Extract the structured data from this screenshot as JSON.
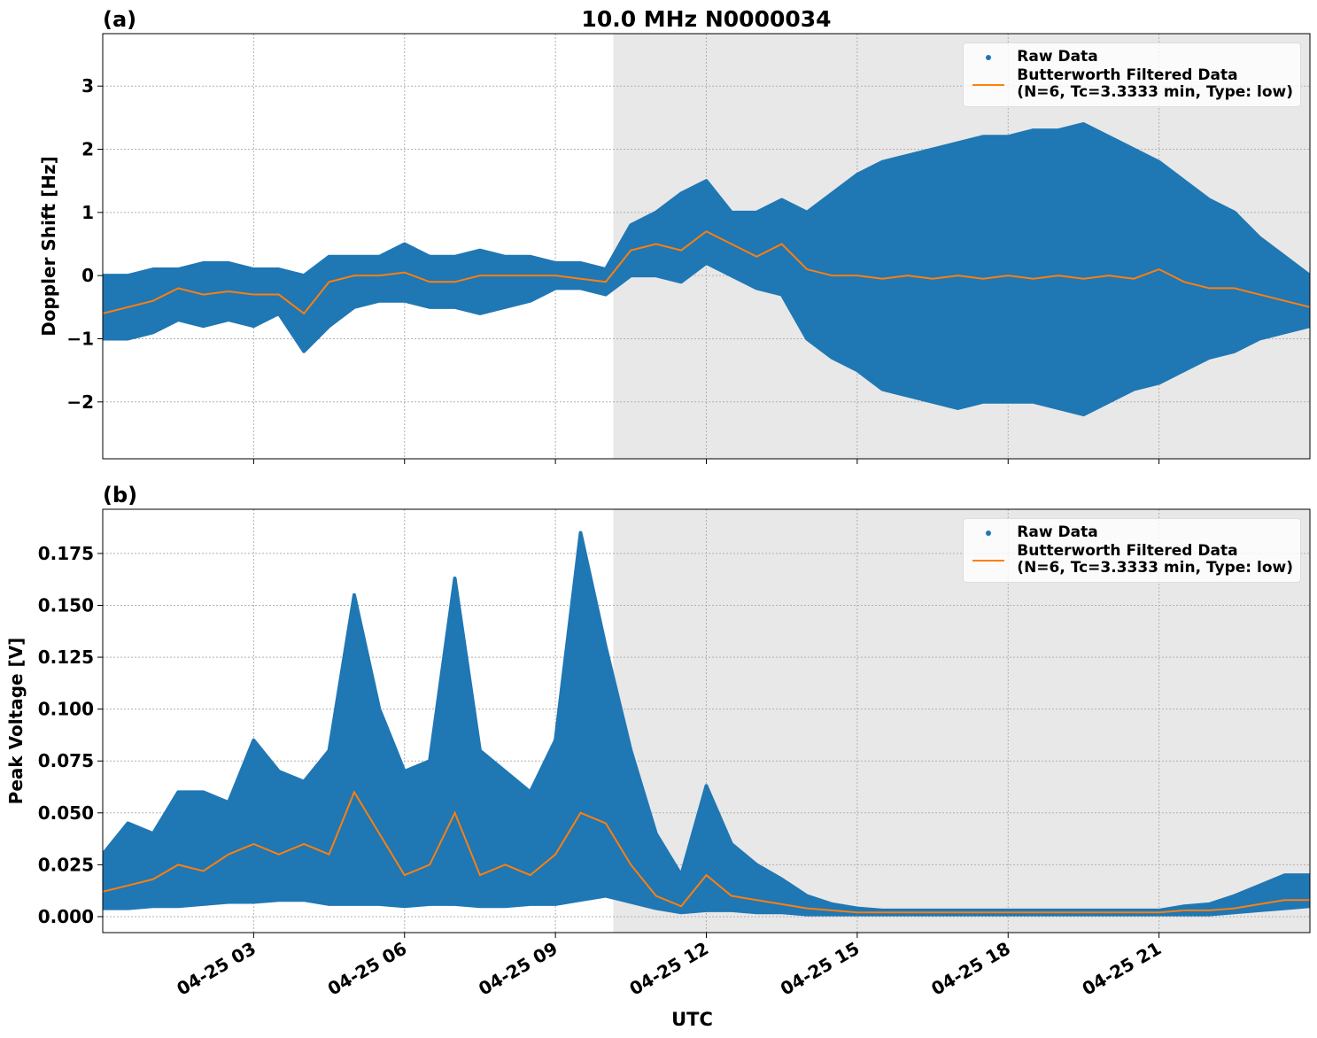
{
  "chart_data": [
    {
      "type": "band_line",
      "title": "10.0 MHz N0000034",
      "panel_label": "(a)",
      "ylabel": "Doppler Shift [Hz]",
      "xlim": [
        0,
        24
      ],
      "xticks": [
        3,
        6,
        9,
        12,
        15,
        18,
        21
      ],
      "ylim": [
        -2.9,
        3.83
      ],
      "yticks": [
        {
          "value": -2,
          "label": "−2"
        },
        {
          "value": -1,
          "label": "−1"
        },
        0,
        1,
        2,
        3
      ],
      "grid": true,
      "legend": "upper right",
      "shaded_region": [
        10.15,
        24
      ],
      "shaded_color": "#e8e8e8",
      "x": [
        0,
        0.5,
        1,
        1.5,
        2,
        2.5,
        3,
        3.5,
        4,
        4.5,
        5,
        5.5,
        6,
        6.5,
        7,
        7.5,
        8,
        8.5,
        9,
        9.5,
        10,
        10.5,
        11,
        11.5,
        12,
        12.5,
        13,
        13.5,
        14,
        14.5,
        15,
        15.5,
        16,
        16.5,
        17,
        17.5,
        18,
        18.5,
        19,
        19.5,
        20,
        20.5,
        21,
        21.5,
        22,
        22.5,
        23,
        23.5,
        24
      ],
      "series": [
        {
          "name": "Raw Data",
          "color": "#1f77b4",
          "marker": "point",
          "low": [
            -1.0,
            -1.0,
            -0.9,
            -0.7,
            -0.8,
            -0.7,
            -0.8,
            -0.6,
            -1.2,
            -0.8,
            -0.5,
            -0.4,
            -0.4,
            -0.5,
            -0.5,
            -0.6,
            -0.5,
            -0.4,
            -0.2,
            -0.2,
            -0.3,
            0.0,
            0.0,
            -0.1,
            0.2,
            0.0,
            -0.2,
            -0.3,
            -1.0,
            -1.3,
            -1.5,
            -1.8,
            -1.9,
            -2.0,
            -2.1,
            -2.0,
            -2.0,
            -2.0,
            -2.1,
            -2.2,
            -2.0,
            -1.8,
            -1.7,
            -1.5,
            -1.3,
            -1.2,
            -1.0,
            -0.9,
            -0.8
          ],
          "high": [
            0.0,
            0.0,
            0.1,
            0.1,
            0.2,
            0.2,
            0.1,
            0.1,
            0.0,
            0.3,
            0.3,
            0.3,
            0.5,
            0.3,
            0.3,
            0.4,
            0.3,
            0.3,
            0.2,
            0.2,
            0.1,
            0.8,
            1.0,
            1.3,
            1.5,
            1.0,
            1.0,
            1.2,
            1.0,
            1.3,
            1.6,
            1.8,
            1.9,
            2.0,
            2.1,
            2.2,
            2.2,
            2.3,
            2.3,
            2.4,
            2.2,
            2.0,
            1.8,
            1.5,
            1.2,
            1.0,
            0.6,
            0.3,
            0.0
          ]
        },
        {
          "name": "Butterworth Filtered Data\n(N=6, Tc=3.3333 min, Type: low)",
          "color": "#ff7f0e",
          "marker": "line",
          "values": [
            -0.6,
            -0.5,
            -0.4,
            -0.2,
            -0.3,
            -0.25,
            -0.3,
            -0.3,
            -0.6,
            -0.1,
            0.0,
            0.0,
            0.05,
            -0.1,
            -0.1,
            0.0,
            0.0,
            0.0,
            0.0,
            -0.05,
            -0.1,
            0.4,
            0.5,
            0.4,
            0.7,
            0.5,
            0.3,
            0.5,
            0.1,
            0.0,
            0.0,
            -0.05,
            0.0,
            -0.05,
            0.0,
            -0.05,
            0.0,
            -0.05,
            0.0,
            -0.05,
            0.0,
            -0.05,
            0.1,
            -0.1,
            -0.2,
            -0.2,
            -0.3,
            -0.4,
            -0.5
          ]
        }
      ]
    },
    {
      "type": "band_line",
      "panel_label": "(b)",
      "ylabel": "Peak Voltage [V]",
      "xlabel": "UTC",
      "xlim": [
        0,
        24
      ],
      "xticks": [
        {
          "value": 3,
          "label": "04-25 03"
        },
        {
          "value": 6,
          "label": "04-25 06"
        },
        {
          "value": 9,
          "label": "04-25 09"
        },
        {
          "value": 12,
          "label": "04-25 12"
        },
        {
          "value": 15,
          "label": "04-25 15"
        },
        {
          "value": 18,
          "label": "04-25 18"
        },
        {
          "value": 21,
          "label": "04-25 21"
        }
      ],
      "ylim": [
        -0.0077,
        0.1963
      ],
      "yticks": [
        {
          "value": 0,
          "label": "0.000"
        },
        {
          "value": 0.025,
          "label": "0.025"
        },
        {
          "value": 0.05,
          "label": "0.050"
        },
        {
          "value": 0.075,
          "label": "0.075"
        },
        {
          "value": 0.1,
          "label": "0.100"
        },
        {
          "value": 0.125,
          "label": "0.125"
        },
        {
          "value": 0.15,
          "label": "0.150"
        },
        {
          "value": 0.175,
          "label": "0.175"
        }
      ],
      "grid": true,
      "legend": "upper right",
      "shaded_region": [
        10.15,
        24
      ],
      "shaded_color": "#e8e8e8",
      "x": [
        0,
        0.5,
        1,
        1.5,
        2,
        2.5,
        3,
        3.5,
        4,
        4.5,
        5,
        5.5,
        6,
        6.5,
        7,
        7.5,
        8,
        8.5,
        9,
        9.5,
        10,
        10.5,
        11,
        11.5,
        12,
        12.5,
        13,
        13.5,
        14,
        14.5,
        15,
        15.5,
        16,
        16.5,
        17,
        17.5,
        18,
        18.5,
        19,
        19.5,
        20,
        20.5,
        21,
        21.5,
        22,
        22.5,
        23,
        23.5,
        24
      ],
      "series": [
        {
          "name": "Raw Data",
          "color": "#1f77b4",
          "marker": "point",
          "low": [
            0.004,
            0.004,
            0.005,
            0.005,
            0.006,
            0.007,
            0.007,
            0.008,
            0.008,
            0.006,
            0.006,
            0.006,
            0.005,
            0.006,
            0.006,
            0.005,
            0.005,
            0.006,
            0.006,
            0.008,
            0.01,
            0.007,
            0.004,
            0.002,
            0.003,
            0.003,
            0.002,
            0.002,
            0.001,
            0.001,
            0.001,
            0.001,
            0.001,
            0.001,
            0.001,
            0.001,
            0.001,
            0.001,
            0.001,
            0.001,
            0.001,
            0.001,
            0.001,
            0.001,
            0.001,
            0.002,
            0.003,
            0.004,
            0.005
          ],
          "high": [
            0.03,
            0.045,
            0.04,
            0.06,
            0.06,
            0.055,
            0.085,
            0.07,
            0.065,
            0.08,
            0.155,
            0.1,
            0.07,
            0.075,
            0.163,
            0.08,
            0.07,
            0.06,
            0.085,
            0.185,
            0.13,
            0.08,
            0.04,
            0.02,
            0.063,
            0.035,
            0.025,
            0.018,
            0.01,
            0.006,
            0.004,
            0.003,
            0.003,
            0.003,
            0.003,
            0.003,
            0.003,
            0.003,
            0.003,
            0.003,
            0.003,
            0.003,
            0.003,
            0.005,
            0.006,
            0.01,
            0.015,
            0.02,
            0.02
          ]
        },
        {
          "name": "Butterworth Filtered Data\n(N=6, Tc=3.3333 min, Type: low)",
          "color": "#ff7f0e",
          "marker": "line",
          "values": [
            0.012,
            0.015,
            0.018,
            0.025,
            0.022,
            0.03,
            0.035,
            0.03,
            0.035,
            0.03,
            0.06,
            0.04,
            0.02,
            0.025,
            0.05,
            0.02,
            0.025,
            0.02,
            0.03,
            0.05,
            0.045,
            0.025,
            0.01,
            0.005,
            0.02,
            0.01,
            0.008,
            0.006,
            0.004,
            0.003,
            0.002,
            0.002,
            0.002,
            0.002,
            0.002,
            0.002,
            0.002,
            0.002,
            0.002,
            0.002,
            0.002,
            0.002,
            0.002,
            0.003,
            0.003,
            0.004,
            0.006,
            0.008,
            0.008
          ]
        }
      ]
    }
  ]
}
